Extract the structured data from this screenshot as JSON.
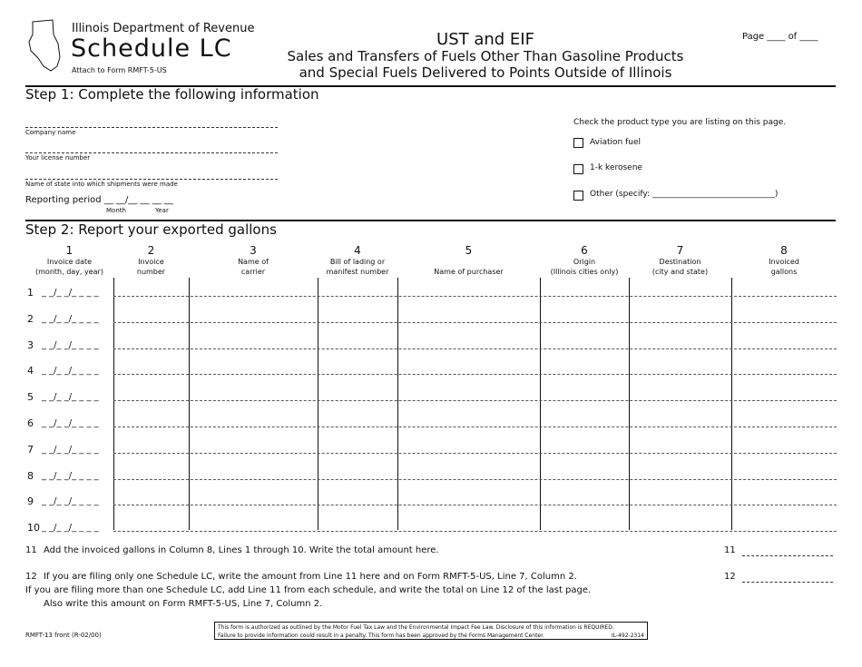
{
  "header": {
    "agency": "Illinois Department of Revenue",
    "schedule": "Schedule LC",
    "attach": "Attach to Form RMFT-5-US",
    "title": "UST and EIF",
    "subtitle1": "Sales and Transfers of Fuels Other Than Gasoline Products",
    "subtitle2": "and Special Fuels Delivered to Points Outside of Illinois",
    "page_label": "Page ____ of ____"
  },
  "step1": {
    "heading": "Step 1:  Complete the following information",
    "company_label": "Company name",
    "license_label": "Your license number",
    "state_label": "Name of state into which shipments were made",
    "period_label": "Reporting period __  __/__  __  __  __",
    "month_label": "Month",
    "year_label": "Year",
    "product_prompt": "Check the product type you are listing on this page.",
    "products": [
      {
        "label": "Aviation fuel",
        "checked": false
      },
      {
        "label": "1-k kerosene",
        "checked": false
      },
      {
        "label": "Other (specify: ______________________________)",
        "checked": false
      }
    ]
  },
  "step2": {
    "heading": "Step 2:  Report your exported gallons",
    "columns": [
      {
        "num": "1",
        "l1": "Invoice date",
        "l2": "(month, day, year)"
      },
      {
        "num": "2",
        "l1": "Invoice",
        "l2": "number"
      },
      {
        "num": "3",
        "l1": "Name of",
        "l2": "carrier"
      },
      {
        "num": "4",
        "l1": "Bill of lading or",
        "l2": "manifest number"
      },
      {
        "num": "5",
        "l1": "",
        "l2": "Name of purchaser"
      },
      {
        "num": "6",
        "l1": "Origin",
        "l2": "(Illinois cities only)"
      },
      {
        "num": "7",
        "l1": "Destination",
        "l2": "(city and state)"
      },
      {
        "num": "8",
        "l1": "Invoiced",
        "l2": "gallons"
      }
    ],
    "rows": [
      "1",
      "2",
      "3",
      "4",
      "5",
      "6",
      "7",
      "8",
      "9",
      "10"
    ],
    "date_placeholder": "_ _/_ _/_ _ _ _"
  },
  "line11": {
    "num": "11",
    "text": "Add the invoiced gallons in Column 8, Lines 1 through 10. Write the total amount here.",
    "label": "11"
  },
  "line12": {
    "num": "12",
    "text": "If you are filing only one Schedule LC, write the amount from Line 11 here and on Form RMFT-5-US, Line 7, Column 2.",
    "label": "12",
    "text2": "If you are filing more than one Schedule LC, add Line 11 from each schedule, and write the total on Line 12 of the last page.",
    "text3": "Also write this amount on Form RMFT-5-US, Line 7, Column 2."
  },
  "footer": {
    "form_id": "RMFT-13 front (R-02/00)",
    "notice1": "This form is authorized as outlined by the Motor Fuel Tax Law and the Environmental Impact Fee Law. Disclosure of this information is REQUIRED.",
    "notice2": "Failure to provide information could result in a penalty. This form has been approved by the Forms Management Center.",
    "code": "IL-492-2314"
  }
}
